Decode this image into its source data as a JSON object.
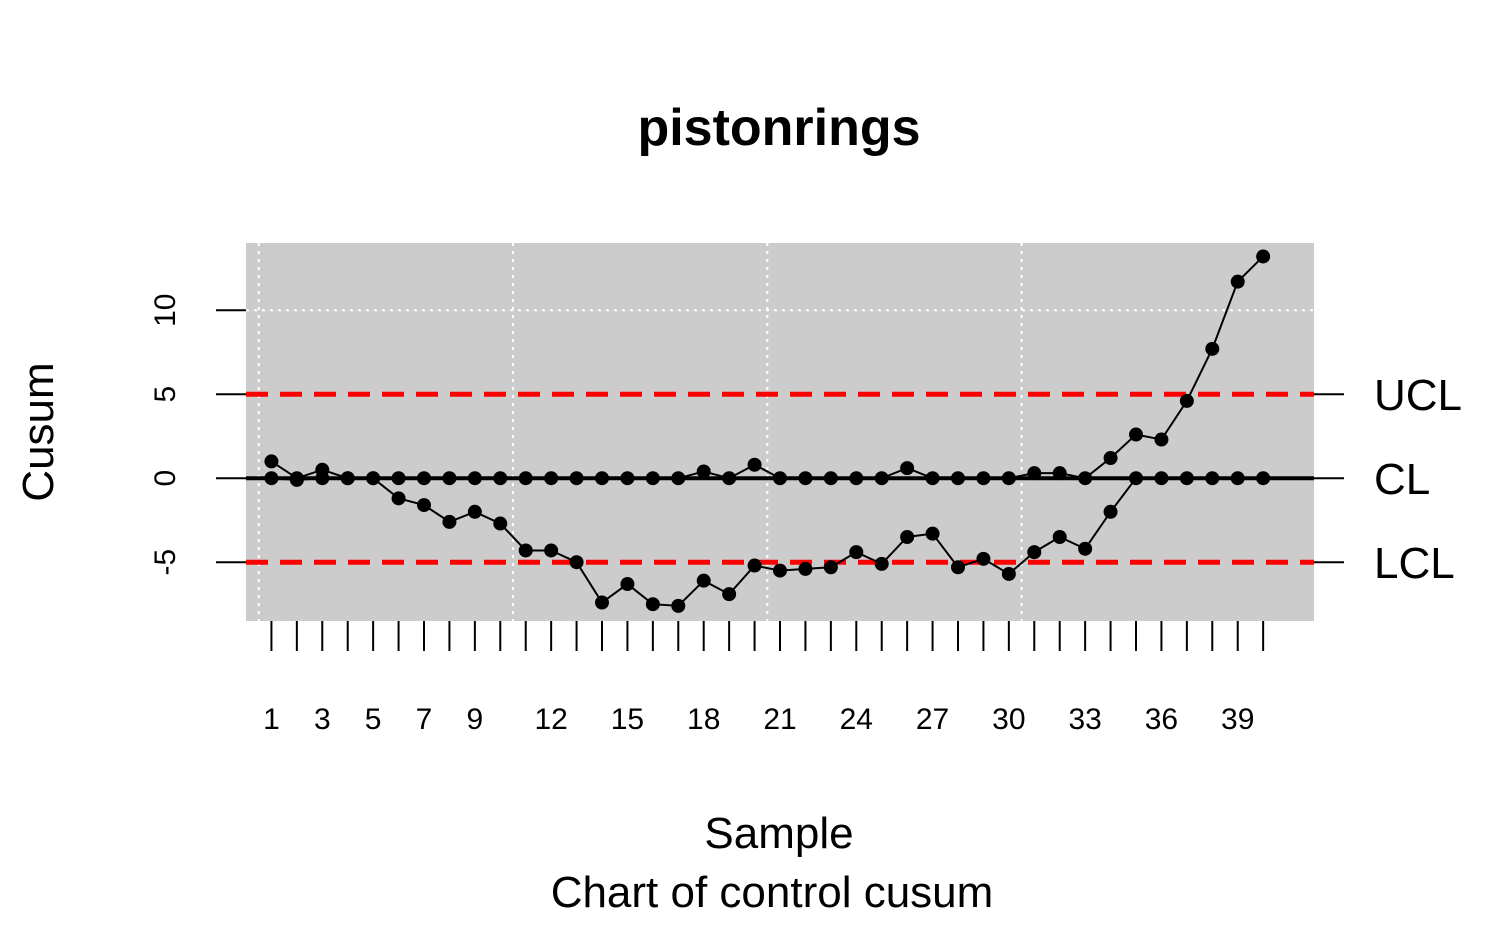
{
  "chart_data": {
    "type": "line",
    "title": "pistonrings",
    "xlabel": "Sample",
    "ylabel": "Cusum",
    "subtitle": "Chart of control cusum",
    "ylim": [
      -8.5,
      14.0
    ],
    "xlim": [
      0.0,
      42.0
    ],
    "y_ticks": [
      -5,
      0,
      5,
      10
    ],
    "x_ticks": [
      1,
      3,
      5,
      7,
      9,
      12,
      15,
      18,
      21,
      24,
      27,
      30,
      33,
      36,
      39
    ],
    "x_ticks_minor": [
      1,
      2,
      3,
      4,
      5,
      6,
      7,
      8,
      9,
      10,
      11,
      12,
      13,
      14,
      15,
      16,
      17,
      18,
      19,
      20,
      21,
      22,
      23,
      24,
      25,
      26,
      27,
      28,
      29,
      30,
      31,
      32,
      33,
      34,
      35,
      36,
      37,
      38,
      39,
      40
    ],
    "grid_x": [
      0.5,
      10.5,
      20.5,
      30.5
    ],
    "grid_y": [
      10
    ],
    "grid": true,
    "limits": {
      "UCL": {
        "label": "UCL",
        "value": 5
      },
      "CL": {
        "label": "CL",
        "value": 0
      },
      "LCL": {
        "label": "LCL",
        "value": -5
      }
    },
    "series": [
      {
        "values": [
          1.0,
          0.0,
          0.5,
          0.0,
          0.0,
          0.0,
          0.0,
          0.0,
          0.0,
          0.0,
          0.0,
          0.0,
          0.0,
          0.0,
          0.0,
          0.0,
          0.0,
          0.4,
          0.0,
          0.8,
          0.0,
          0.0,
          0.0,
          0.0,
          0.0,
          0.6,
          0.0,
          0.0,
          0.0,
          0.0,
          0.3,
          0.3,
          0.0,
          1.2,
          2.6,
          2.3,
          4.6,
          7.7,
          11.7,
          13.2
        ]
      },
      {
        "values": [
          0.0,
          -0.1,
          0.0,
          0.0,
          0.0,
          -1.2,
          -1.6,
          -2.6,
          -2.0,
          -2.7,
          -4.3,
          -4.3,
          -5.0,
          -7.4,
          -6.3,
          -7.5,
          -7.6,
          -6.1,
          -6.9,
          -5.2,
          -5.5,
          -5.4,
          -5.3,
          -4.4,
          -5.1,
          -3.5,
          -3.3,
          -5.3,
          -4.8,
          -5.7,
          -4.4,
          -3.5,
          -4.2,
          -2.0,
          0.0,
          0.0,
          0.0,
          0.0,
          0.0,
          0.0
        ]
      }
    ],
    "colors": {
      "panel": "#cccccc",
      "grid": "#ffffff",
      "limit_lines": "#ff0000",
      "center_line": "#000000",
      "points": "#000000"
    }
  }
}
